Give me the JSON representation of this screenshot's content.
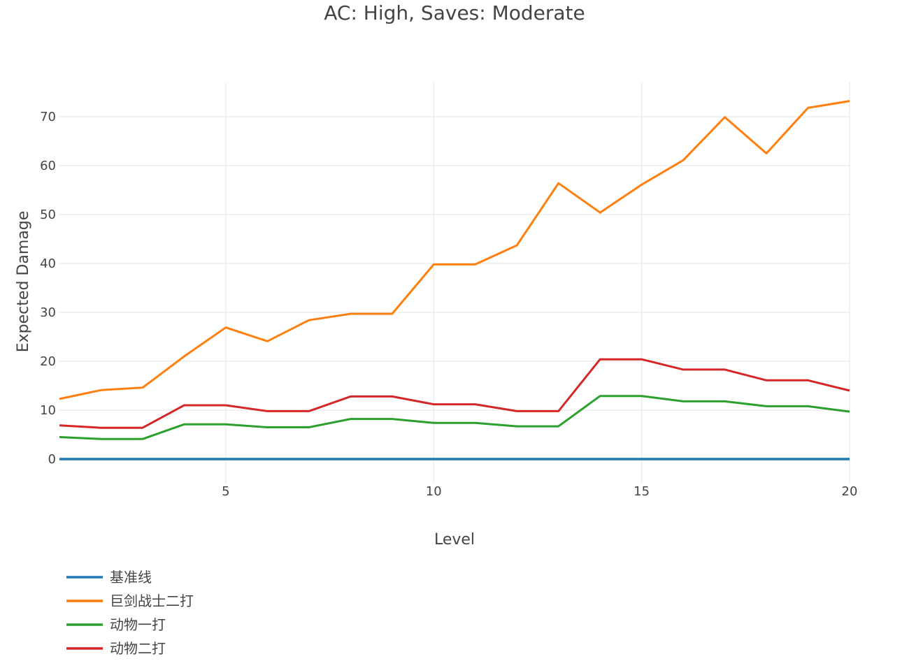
{
  "chart_data": {
    "type": "line",
    "title": "AC: High, Saves: Moderate",
    "xlabel": "Level",
    "ylabel": "Expected Damage",
    "xlim": [
      1,
      20
    ],
    "ylim": [
      -5,
      77
    ],
    "xticks": [
      5,
      10,
      15,
      20
    ],
    "yticks": [
      0,
      10,
      20,
      30,
      40,
      50,
      60,
      70
    ],
    "grid": true,
    "legend_position": "bottom-left",
    "x": [
      1,
      2,
      3,
      4,
      5,
      6,
      7,
      8,
      9,
      10,
      11,
      12,
      13,
      14,
      15,
      16,
      17,
      18,
      19,
      20
    ],
    "series": [
      {
        "name": "基准线",
        "color": "#1f77b4",
        "values": [
          0,
          0,
          0,
          0,
          0,
          0,
          0,
          0,
          0,
          0,
          0,
          0,
          0,
          0,
          0,
          0,
          0,
          0,
          0,
          0
        ]
      },
      {
        "name": "巨剑战士二打",
        "color": "#ff7f0e",
        "values": [
          12.3,
          14.1,
          14.6,
          21.0,
          26.9,
          24.1,
          28.4,
          29.7,
          29.7,
          39.8,
          39.8,
          43.7,
          56.4,
          50.4,
          56.1,
          61.1,
          69.9,
          62.5,
          71.8,
          73.2
        ]
      },
      {
        "name": "动物一打",
        "color": "#2ca02c",
        "values": [
          4.5,
          4.1,
          4.1,
          7.1,
          7.1,
          6.5,
          6.5,
          8.2,
          8.2,
          7.4,
          7.4,
          6.7,
          6.7,
          12.9,
          12.9,
          11.8,
          11.8,
          10.8,
          10.8,
          9.7
        ]
      },
      {
        "name": "动物二打",
        "color": "#d62728",
        "values": [
          6.9,
          6.4,
          6.4,
          11.0,
          11.0,
          9.8,
          9.8,
          12.8,
          12.8,
          11.2,
          11.2,
          9.8,
          9.8,
          20.4,
          20.4,
          18.3,
          18.3,
          16.1,
          16.1,
          14.0
        ]
      }
    ]
  }
}
